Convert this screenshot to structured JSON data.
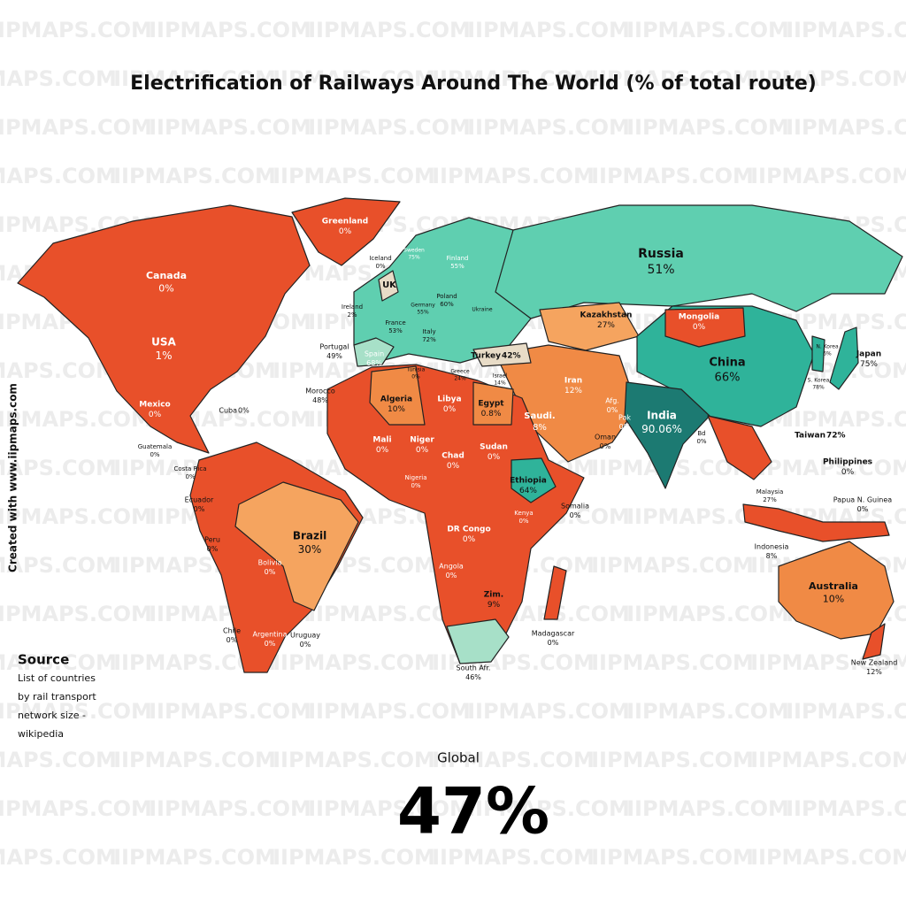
{
  "title": "Electrification of Railways Around The World (% of total route)",
  "watermark": "IIPMAPS.COM",
  "credit": "Created with www.iipmaps.com",
  "source": {
    "heading": "Source",
    "lines": [
      "List of countries",
      "by rail transport",
      "network size -",
      "wikipedia"
    ]
  },
  "global": {
    "label": "Global",
    "value": "47%"
  },
  "countries": [
    {
      "name": "Greenland",
      "value": "0%"
    },
    {
      "name": "Iceland",
      "value": "0%"
    },
    {
      "name": "Canada",
      "value": "0%"
    },
    {
      "name": "USA",
      "value": "1%"
    },
    {
      "name": "Mexico",
      "value": "0%"
    },
    {
      "name": "Cuba",
      "value": "0%"
    },
    {
      "name": "Guatemala",
      "value": "0%"
    },
    {
      "name": "Costa Rica",
      "value": "0%"
    },
    {
      "name": "Ecuador",
      "value": "0%"
    },
    {
      "name": "Peru",
      "value": "0%"
    },
    {
      "name": "Brazil",
      "value": "30%"
    },
    {
      "name": "Bolivia",
      "value": "0%"
    },
    {
      "name": "Chile",
      "value": "0%"
    },
    {
      "name": "Argentina",
      "value": "0%"
    },
    {
      "name": "Uruguay",
      "value": "0%"
    },
    {
      "name": "UK"
    },
    {
      "name": "Ireland",
      "value": "2%"
    },
    {
      "name": "Portugal",
      "value": "49%"
    },
    {
      "name": "Spain",
      "value": "68%"
    },
    {
      "name": "France",
      "value": "53%"
    },
    {
      "name": "Germany",
      "value": "55%"
    },
    {
      "name": "Poland",
      "value": "60%"
    },
    {
      "name": "Sweden",
      "value": "75%"
    },
    {
      "name": "Finland",
      "value": "55%"
    },
    {
      "name": "Ukraine"
    },
    {
      "name": "Italy",
      "value": "72%"
    },
    {
      "name": "Morocco",
      "value": "48%"
    },
    {
      "name": "Algeria",
      "value": "10%"
    },
    {
      "name": "Tunisia",
      "value": "0%"
    },
    {
      "name": "Libya",
      "value": "0%"
    },
    {
      "name": "Egypt",
      "value": "0.8%"
    },
    {
      "name": "Greece",
      "value": "24%"
    },
    {
      "name": "Turkey",
      "value": "42%"
    },
    {
      "name": "Israel",
      "value": "14%"
    },
    {
      "name": "Mali",
      "value": "0%"
    },
    {
      "name": "Niger",
      "value": "0%"
    },
    {
      "name": "Chad",
      "value": "0%"
    },
    {
      "name": "Sudan",
      "value": "0%"
    },
    {
      "name": "Nigeria",
      "value": "0%"
    },
    {
      "name": "Ethiopia",
      "value": "64%"
    },
    {
      "name": "Kenya",
      "value": "0%"
    },
    {
      "name": "Somalia",
      "value": "0%"
    },
    {
      "name": "DR Congo",
      "value": "0%"
    },
    {
      "name": "Angola",
      "value": "0%"
    },
    {
      "name": "Zim.",
      "value": "9%"
    },
    {
      "name": "South Afr.",
      "value": "46%"
    },
    {
      "name": "Madagascar",
      "value": "0%"
    },
    {
      "name": "Saudi.",
      "value": "8%"
    },
    {
      "name": "Oman",
      "value": "0%"
    },
    {
      "name": "Iran",
      "value": "12%"
    },
    {
      "name": "Afg.",
      "value": "0%"
    },
    {
      "name": "Pak",
      "value": "0%"
    },
    {
      "name": "Russia",
      "value": "51%"
    },
    {
      "name": "Kazakhstan",
      "value": "27%"
    },
    {
      "name": "Mongolia",
      "value": "0%"
    },
    {
      "name": "China",
      "value": "66%"
    },
    {
      "name": "India",
      "value": "90.06%"
    },
    {
      "name": "Bd",
      "value": "0%"
    },
    {
      "name": "N. Korea",
      "value": "6%"
    },
    {
      "name": "S. Korea",
      "value": "78%"
    },
    {
      "name": "Japan",
      "value": "75%"
    },
    {
      "name": "Taiwan",
      "value": "72%"
    },
    {
      "name": "Philippines",
      "value": "0%"
    },
    {
      "name": "Malaysia",
      "value": "27%"
    },
    {
      "name": "Indonesia",
      "value": "8%"
    },
    {
      "name": "Papua N. Guinea",
      "value": "0%"
    },
    {
      "name": "Australia",
      "value": "10%"
    },
    {
      "name": "New Zealand",
      "value": "12%"
    }
  ]
}
